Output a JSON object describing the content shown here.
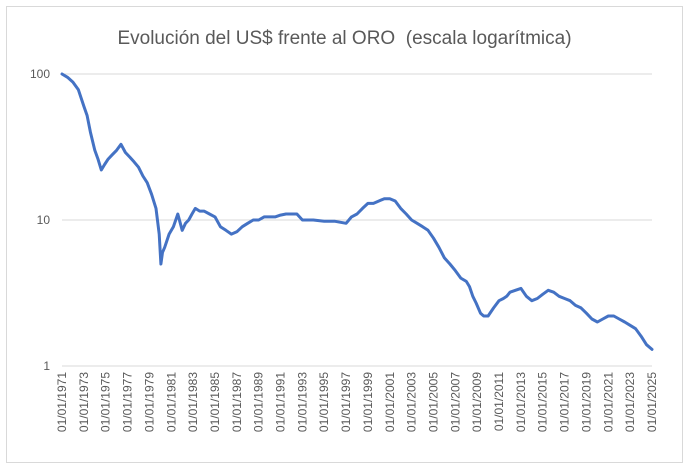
{
  "chart_data": {
    "type": "line",
    "title": "Evolución del US$ frente al ORO  (escala logarítmica)",
    "xlabel": "",
    "ylabel": "",
    "y_scale": "log",
    "ylim": [
      1,
      100
    ],
    "y_ticks": [
      1,
      10,
      100
    ],
    "y_tick_labels": [
      "1",
      "10",
      "100"
    ],
    "x_tick_labels": [
      "01/01/1971",
      "01/01/1973",
      "01/01/1975",
      "01/01/1977",
      "01/01/1979",
      "01/01/1981",
      "01/01/1983",
      "01/01/1985",
      "01/01/1987",
      "01/01/1989",
      "01/01/1991",
      "01/01/1993",
      "01/01/1995",
      "01/01/1997",
      "01/01/1999",
      "01/01/2001",
      "01/01/2003",
      "01/01/2005",
      "01/01/2007",
      "01/01/2009",
      "01/01/2011",
      "01/01/2013",
      "01/01/2015",
      "01/01/2017",
      "01/01/2019",
      "01/01/2021",
      "01/01/2023",
      "01/01/2025"
    ],
    "grid": true,
    "line_color": "#4472c4",
    "series": [
      {
        "x": [
          1971.0,
          1971.5,
          1972.0,
          1972.5,
          1973.0,
          1973.3,
          1973.6,
          1974.0,
          1974.3,
          1974.6,
          1974.9,
          1975.2,
          1975.6,
          1976.0,
          1976.4,
          1976.8,
          1977.2,
          1977.6,
          1978.0,
          1978.4,
          1978.8,
          1979.2,
          1979.6,
          1979.9,
          1980.05,
          1980.2,
          1980.4,
          1980.8,
          1981.2,
          1981.6,
          1982.0,
          1982.3,
          1982.6,
          1982.9,
          1983.2,
          1983.6,
          1984.0,
          1984.5,
          1985.0,
          1985.5,
          1986.0,
          1986.5,
          1987.0,
          1987.5,
          1988.0,
          1988.5,
          1989.0,
          1989.5,
          1990.0,
          1990.5,
          1991.0,
          1991.5,
          1992.0,
          1992.5,
          1993.0,
          1993.5,
          1994.0,
          1995.0,
          1996.0,
          1997.0,
          1997.5,
          1998.0,
          1998.5,
          1999.0,
          1999.5,
          2000.0,
          2000.5,
          2001.0,
          2001.5,
          2002.0,
          2002.5,
          2003.0,
          2003.5,
          2004.0,
          2004.5,
          2005.0,
          2005.5,
          2006.0,
          2006.5,
          2007.0,
          2007.5,
          2008.0,
          2008.3,
          2008.6,
          2008.9,
          2009.3,
          2009.6,
          2010.0,
          2010.5,
          2011.0,
          2011.4,
          2011.7,
          2012.0,
          2012.5,
          2013.0,
          2013.5,
          2014.0,
          2014.5,
          2015.0,
          2015.5,
          2016.0,
          2016.5,
          2017.0,
          2017.5,
          2018.0,
          2018.5,
          2019.0,
          2019.5,
          2020.0,
          2020.5,
          2021.0,
          2021.5,
          2022.0,
          2022.5,
          2023.0,
          2023.5,
          2024.0,
          2024.5,
          2025.0
        ],
        "values": [
          100,
          95,
          88,
          78,
          60,
          52,
          40,
          30,
          26,
          22,
          24,
          26,
          28,
          30,
          33,
          29,
          27,
          25,
          23,
          20,
          18,
          15,
          12,
          8,
          5,
          6,
          6.5,
          8,
          9,
          11,
          8.5,
          9.5,
          10,
          11,
          12,
          11.5,
          11.5,
          11,
          10.5,
          9,
          8.5,
          8,
          8.3,
          9,
          9.5,
          10,
          10,
          10.5,
          10.5,
          10.5,
          10.8,
          11,
          11,
          11,
          10,
          10,
          10,
          9.8,
          9.8,
          9.5,
          10.5,
          11,
          12,
          13,
          13,
          13.5,
          14,
          14,
          13.5,
          12,
          11,
          10,
          9.5,
          9,
          8.5,
          7.5,
          6.5,
          5.5,
          5,
          4.5,
          4,
          3.8,
          3.5,
          3,
          2.7,
          2.3,
          2.2,
          2.2,
          2.5,
          2.8,
          2.9,
          3,
          3.2,
          3.3,
          3.4,
          3,
          2.8,
          2.9,
          3.1,
          3.3,
          3.2,
          3,
          2.9,
          2.8,
          2.6,
          2.5,
          2.3,
          2.1,
          2,
          2.1,
          2.2,
          2.2,
          2.1,
          2,
          1.9,
          1.8,
          1.6,
          1.4,
          1.3
        ]
      }
    ]
  }
}
